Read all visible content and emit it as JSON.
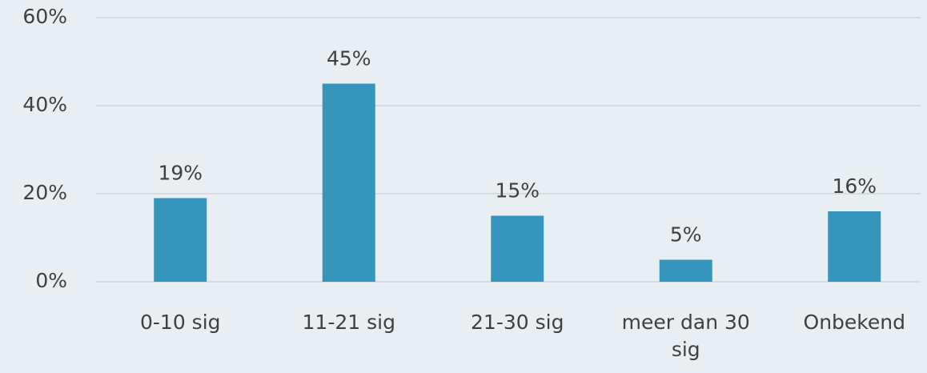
{
  "chart_data": {
    "type": "bar",
    "categories": [
      "0-10 sig",
      "11-21 sig",
      "21-30 sig",
      "meer dan 30 sig",
      "Onbekend"
    ],
    "values": [
      19,
      45,
      15,
      5,
      16
    ],
    "value_labels": [
      "19%",
      "45%",
      "15%",
      "5%",
      "16%"
    ],
    "color": "#3595bc",
    "ylim": [
      0,
      60
    ],
    "yticks": [
      {
        "value": 0,
        "label": "0%"
      },
      {
        "value": 20,
        "label": "20%"
      },
      {
        "value": 40,
        "label": "40%"
      },
      {
        "value": 60,
        "label": "60%"
      }
    ],
    "grid": true
  }
}
